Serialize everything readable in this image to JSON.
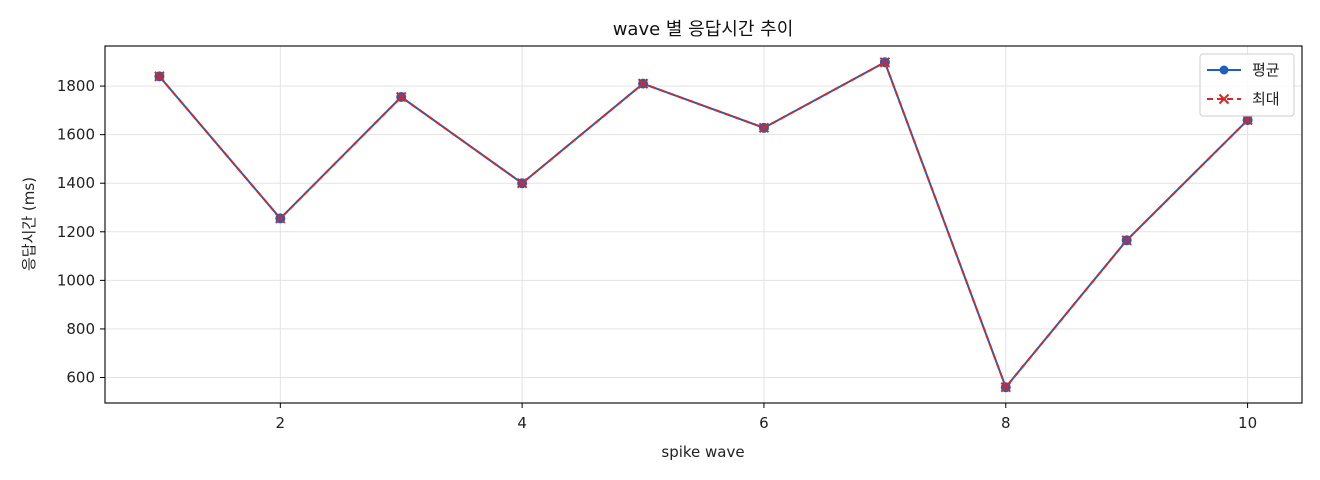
{
  "chart_data": {
    "type": "line",
    "title": "wave 별 응답시간 추이",
    "xlabel": "spike wave",
    "ylabel": "응답시간 (ms)",
    "x": [
      1,
      2,
      3,
      4,
      5,
      6,
      7,
      8,
      9,
      10
    ],
    "xlim": [
      0.55,
      10.45
    ],
    "ylim": [
      495,
      1965
    ],
    "xticks": [
      2,
      4,
      6,
      8,
      10
    ],
    "yticks": [
      600,
      800,
      1000,
      1200,
      1400,
      1600,
      1800
    ],
    "grid": true,
    "legend_position": "top-right",
    "series": [
      {
        "name": "평균",
        "color": "#1f5fbf",
        "marker": "circle",
        "line_style": "solid",
        "values": [
          1840,
          1255,
          1755,
          1400,
          1810,
          1628,
          1898,
          560,
          1165,
          1660
        ]
      },
      {
        "name": "최대",
        "color": "#d62728",
        "marker": "x",
        "line_style": "dashed",
        "values": [
          1840,
          1255,
          1755,
          1400,
          1810,
          1628,
          1898,
          560,
          1165,
          1660
        ]
      }
    ]
  }
}
